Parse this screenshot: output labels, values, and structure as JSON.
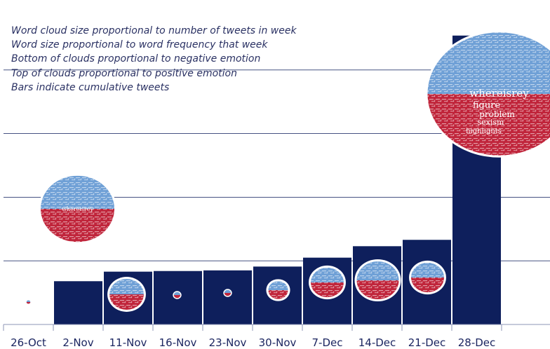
{
  "chart_data": {
    "type": "bar",
    "title": "",
    "xlabel": "",
    "ylabel": "",
    "categories": [
      "26-Oct",
      "2-Nov",
      "11-Nov",
      "16-Nov",
      "23-Nov",
      "30-Nov",
      "7-Dec",
      "14-Dec",
      "21-Dec",
      "28-Dec"
    ],
    "values": [
      0,
      68,
      83,
      84,
      85,
      91,
      105,
      123,
      133,
      454
    ],
    "ylim": [
      0,
      500
    ],
    "gridlines": [
      100,
      200,
      300,
      400
    ],
    "grid": true,
    "y_tick_labels_shown": false,
    "bar_color": "#0e1f5c",
    "word_clouds": [
      {
        "week": "26-Oct",
        "relative_size": 0.03,
        "positive_color": "#6fa0d6",
        "negative_color": "#c0253b"
      },
      {
        "week": "2-Nov",
        "relative_size": 0.56,
        "positive_color": "#6fa0d6",
        "negative_color": "#c0253b",
        "featured_word": "whereisrey"
      },
      {
        "week": "11-Nov",
        "relative_size": 0.26,
        "positive_color": "#6fa0d6",
        "negative_color": "#c0253b"
      },
      {
        "week": "16-Nov",
        "relative_size": 0.05,
        "positive_color": "#6fa0d6",
        "negative_color": "#c0253b"
      },
      {
        "week": "23-Nov",
        "relative_size": 0.05,
        "positive_color": "#6fa0d6",
        "negative_color": "#c0253b"
      },
      {
        "week": "30-Nov",
        "relative_size": 0.15,
        "positive_color": "#6fa0d6",
        "negative_color": "#c0253b"
      },
      {
        "week": "7-Dec",
        "relative_size": 0.25,
        "positive_color": "#6fa0d6",
        "negative_color": "#c0253b"
      },
      {
        "week": "14-Dec",
        "relative_size": 0.32,
        "positive_color": "#6fa0d6",
        "negative_color": "#c0253b"
      },
      {
        "week": "21-Dec",
        "relative_size": 0.25,
        "positive_color": "#6fa0d6",
        "negative_color": "#c0253b"
      },
      {
        "week": "28-Dec",
        "relative_size": 1.0,
        "positive_color": "#6fa0d6",
        "negative_color": "#c0253b",
        "featured_word": "whereisrey",
        "visible_words": [
          "figure",
          "problem",
          "sexism",
          "highlights"
        ]
      }
    ],
    "annotations": [
      "Word cloud size proportional to number of tweets in week",
      "Word size proportional to word frequency that week",
      "Bottom of clouds proportional to negative emotion",
      "Top of clouds proportional to positive emotion",
      "Bars indicate cumulative tweets"
    ]
  }
}
